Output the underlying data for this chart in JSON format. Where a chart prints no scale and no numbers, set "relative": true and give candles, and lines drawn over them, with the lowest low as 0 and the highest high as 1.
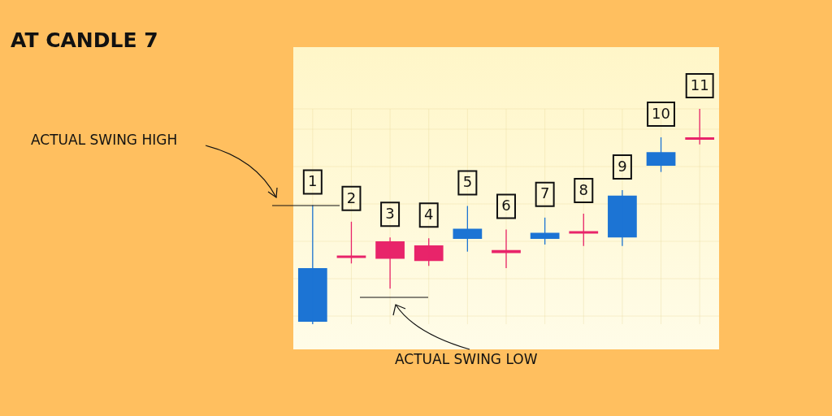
{
  "chart_data": {
    "type": "candlestick",
    "title": "AT CANDLE 7",
    "relative": true,
    "grid": true,
    "categories": [
      "1",
      "2",
      "3",
      "4",
      "5",
      "6",
      "7",
      "8",
      "9",
      "10",
      "11"
    ],
    "ohlc": [
      [
        0.011,
        0.553,
        0,
        0.26
      ],
      [
        0.319,
        0.476,
        0.282,
        0.308
      ],
      [
        0.385,
        0.403,
        0.165,
        0.304
      ],
      [
        0.366,
        0.399,
        0.271,
        0.293
      ],
      [
        0.396,
        0.549,
        0.337,
        0.443
      ],
      [
        0.344,
        0.44,
        0.26,
        0.33
      ],
      [
        0.396,
        0.495,
        0.37,
        0.425
      ],
      [
        0.432,
        0.513,
        0.363,
        0.421
      ],
      [
        0.403,
        0.623,
        0.363,
        0.597
      ],
      [
        0.736,
        0.868,
        0.707,
        0.799
      ],
      [
        0.868,
        1,
        0.835,
        0.857
      ]
    ],
    "colors": [
      "#1c74d4",
      "#e8246a",
      "#e8246a",
      "#e8246a",
      "#1c74d4",
      "#e8246a",
      "#1c74d4",
      "#e8246a",
      "#1c74d4",
      "#1c74d4",
      "#e8246a"
    ],
    "annotations": [
      "ACTUAL SWING HIGH",
      "ACTUAL SWING LOW"
    ]
  }
}
